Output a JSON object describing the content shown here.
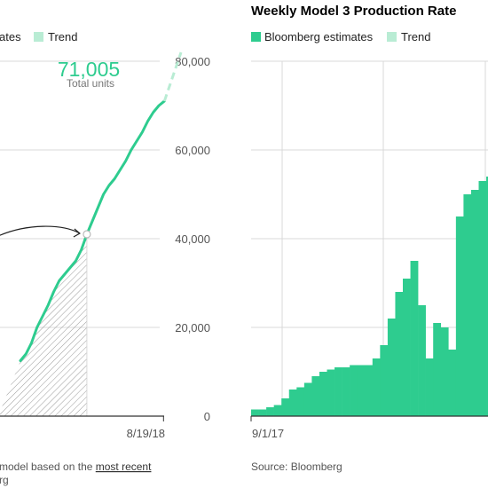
{
  "colors": {
    "estimate": "#2ecc8f",
    "trend": "#b9ecd4",
    "grid": "#d8d8d8",
    "axis": "#333333",
    "hatch": "#9a9a9a",
    "text_muted": "#555555"
  },
  "left_panel": {
    "legend": {
      "estimates_label": "ates",
      "trend_label": "Trend"
    },
    "annotation": {
      "value": "71,005",
      "label": "Total units"
    },
    "note": {
      "prefix": "model based on the ",
      "link": "most recent"
    },
    "source_fragment": "rg"
  },
  "right_panel": {
    "title": "Weekly Model 3 Production Rate",
    "legend": {
      "estimates_label": "Bloomberg estimates",
      "trend_label": "Trend"
    },
    "source": "Source: Bloomberg"
  },
  "chart_data": [
    {
      "type": "line",
      "title": "",
      "x_tick_labels": [
        "8/19/18"
      ],
      "y_tick_labels": [
        "0",
        "20,000",
        "40,000",
        "60,000",
        "80,000"
      ],
      "ylim": [
        0,
        80000
      ],
      "grid": true,
      "legend": "top",
      "x_range": [
        0,
        33
      ],
      "series": [
        {
          "name": "Bloomberg estimates",
          "x": [
            0,
            1,
            2,
            3,
            4,
            5,
            6,
            7,
            8,
            9,
            10,
            11,
            12,
            13,
            14,
            15,
            16,
            17,
            18,
            19,
            20,
            21,
            22,
            23,
            24,
            25,
            26
          ],
          "y": [
            12500,
            14000,
            16500,
            20000,
            22500,
            25000,
            28000,
            30500,
            32000,
            33500,
            35000,
            37500,
            41000,
            44000,
            47000,
            50000,
            52000,
            53500,
            55500,
            57500,
            60000,
            62000,
            64000,
            66500,
            68500,
            70000,
            71005
          ]
        },
        {
          "name": "Trend",
          "x": [
            26,
            29
          ],
          "y": [
            71005,
            82000
          ]
        }
      ],
      "annotations": [
        {
          "type": "marker",
          "x": 12,
          "y": 41000
        }
      ]
    },
    {
      "type": "bar",
      "title": "Weekly Model 3 Production Rate",
      "x_tick_labels": [
        "9/1/17"
      ],
      "grid": true,
      "legend": "top",
      "series": [
        {
          "name": "Bloomberg estimates",
          "values": [
            150,
            150,
            200,
            250,
            400,
            600,
            650,
            750,
            900,
            1000,
            1050,
            1100,
            1100,
            1150,
            1150,
            1150,
            1300,
            1600,
            2200,
            2800,
            3100,
            3500,
            2500,
            1300,
            2100,
            2000,
            1500,
            4500,
            5000,
            5100,
            5300,
            5400
          ]
        }
      ],
      "ylim": [
        0,
        8000
      ]
    }
  ]
}
